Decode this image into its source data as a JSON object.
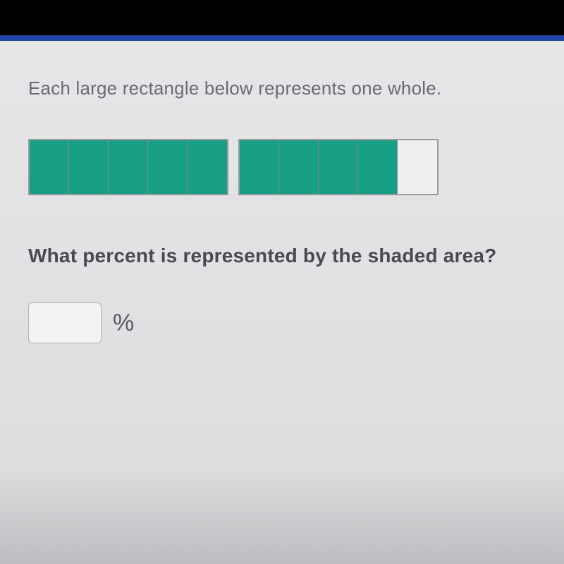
{
  "problem": {
    "instruction": "Each large rectangle below represents one whole.",
    "question": "What percent is represented by the shaded area?",
    "answer_value": "",
    "percent_label": "%"
  },
  "diagram": {
    "type": "segmented-bar",
    "wholes": [
      {
        "segments": 5,
        "shaded_count": 5,
        "shaded_color": "#189e85",
        "unshaded_color": "#f0eff0"
      },
      {
        "segments": 5,
        "shaded_count": 4,
        "shaded_color": "#189e85",
        "unshaded_color": "#f0eff0"
      }
    ],
    "segment_width": 56,
    "segment_height": 76,
    "border_color": "#9a9a9e",
    "divider_color": "#888888",
    "gap_between_wholes": 14
  },
  "styling": {
    "background_color": "#e8e8ea",
    "topbar_color": "#000000",
    "strip_color": "#2046a8",
    "instruction_fontsize": 26,
    "instruction_color": "#6a6a72",
    "question_fontsize": 28,
    "question_color": "#4a4a52",
    "question_fontweight": 700,
    "input_border_color": "#b0b0b4",
    "input_background": "#f4f3f4",
    "percent_fontsize": 34,
    "percent_color": "#5a5a62"
  }
}
